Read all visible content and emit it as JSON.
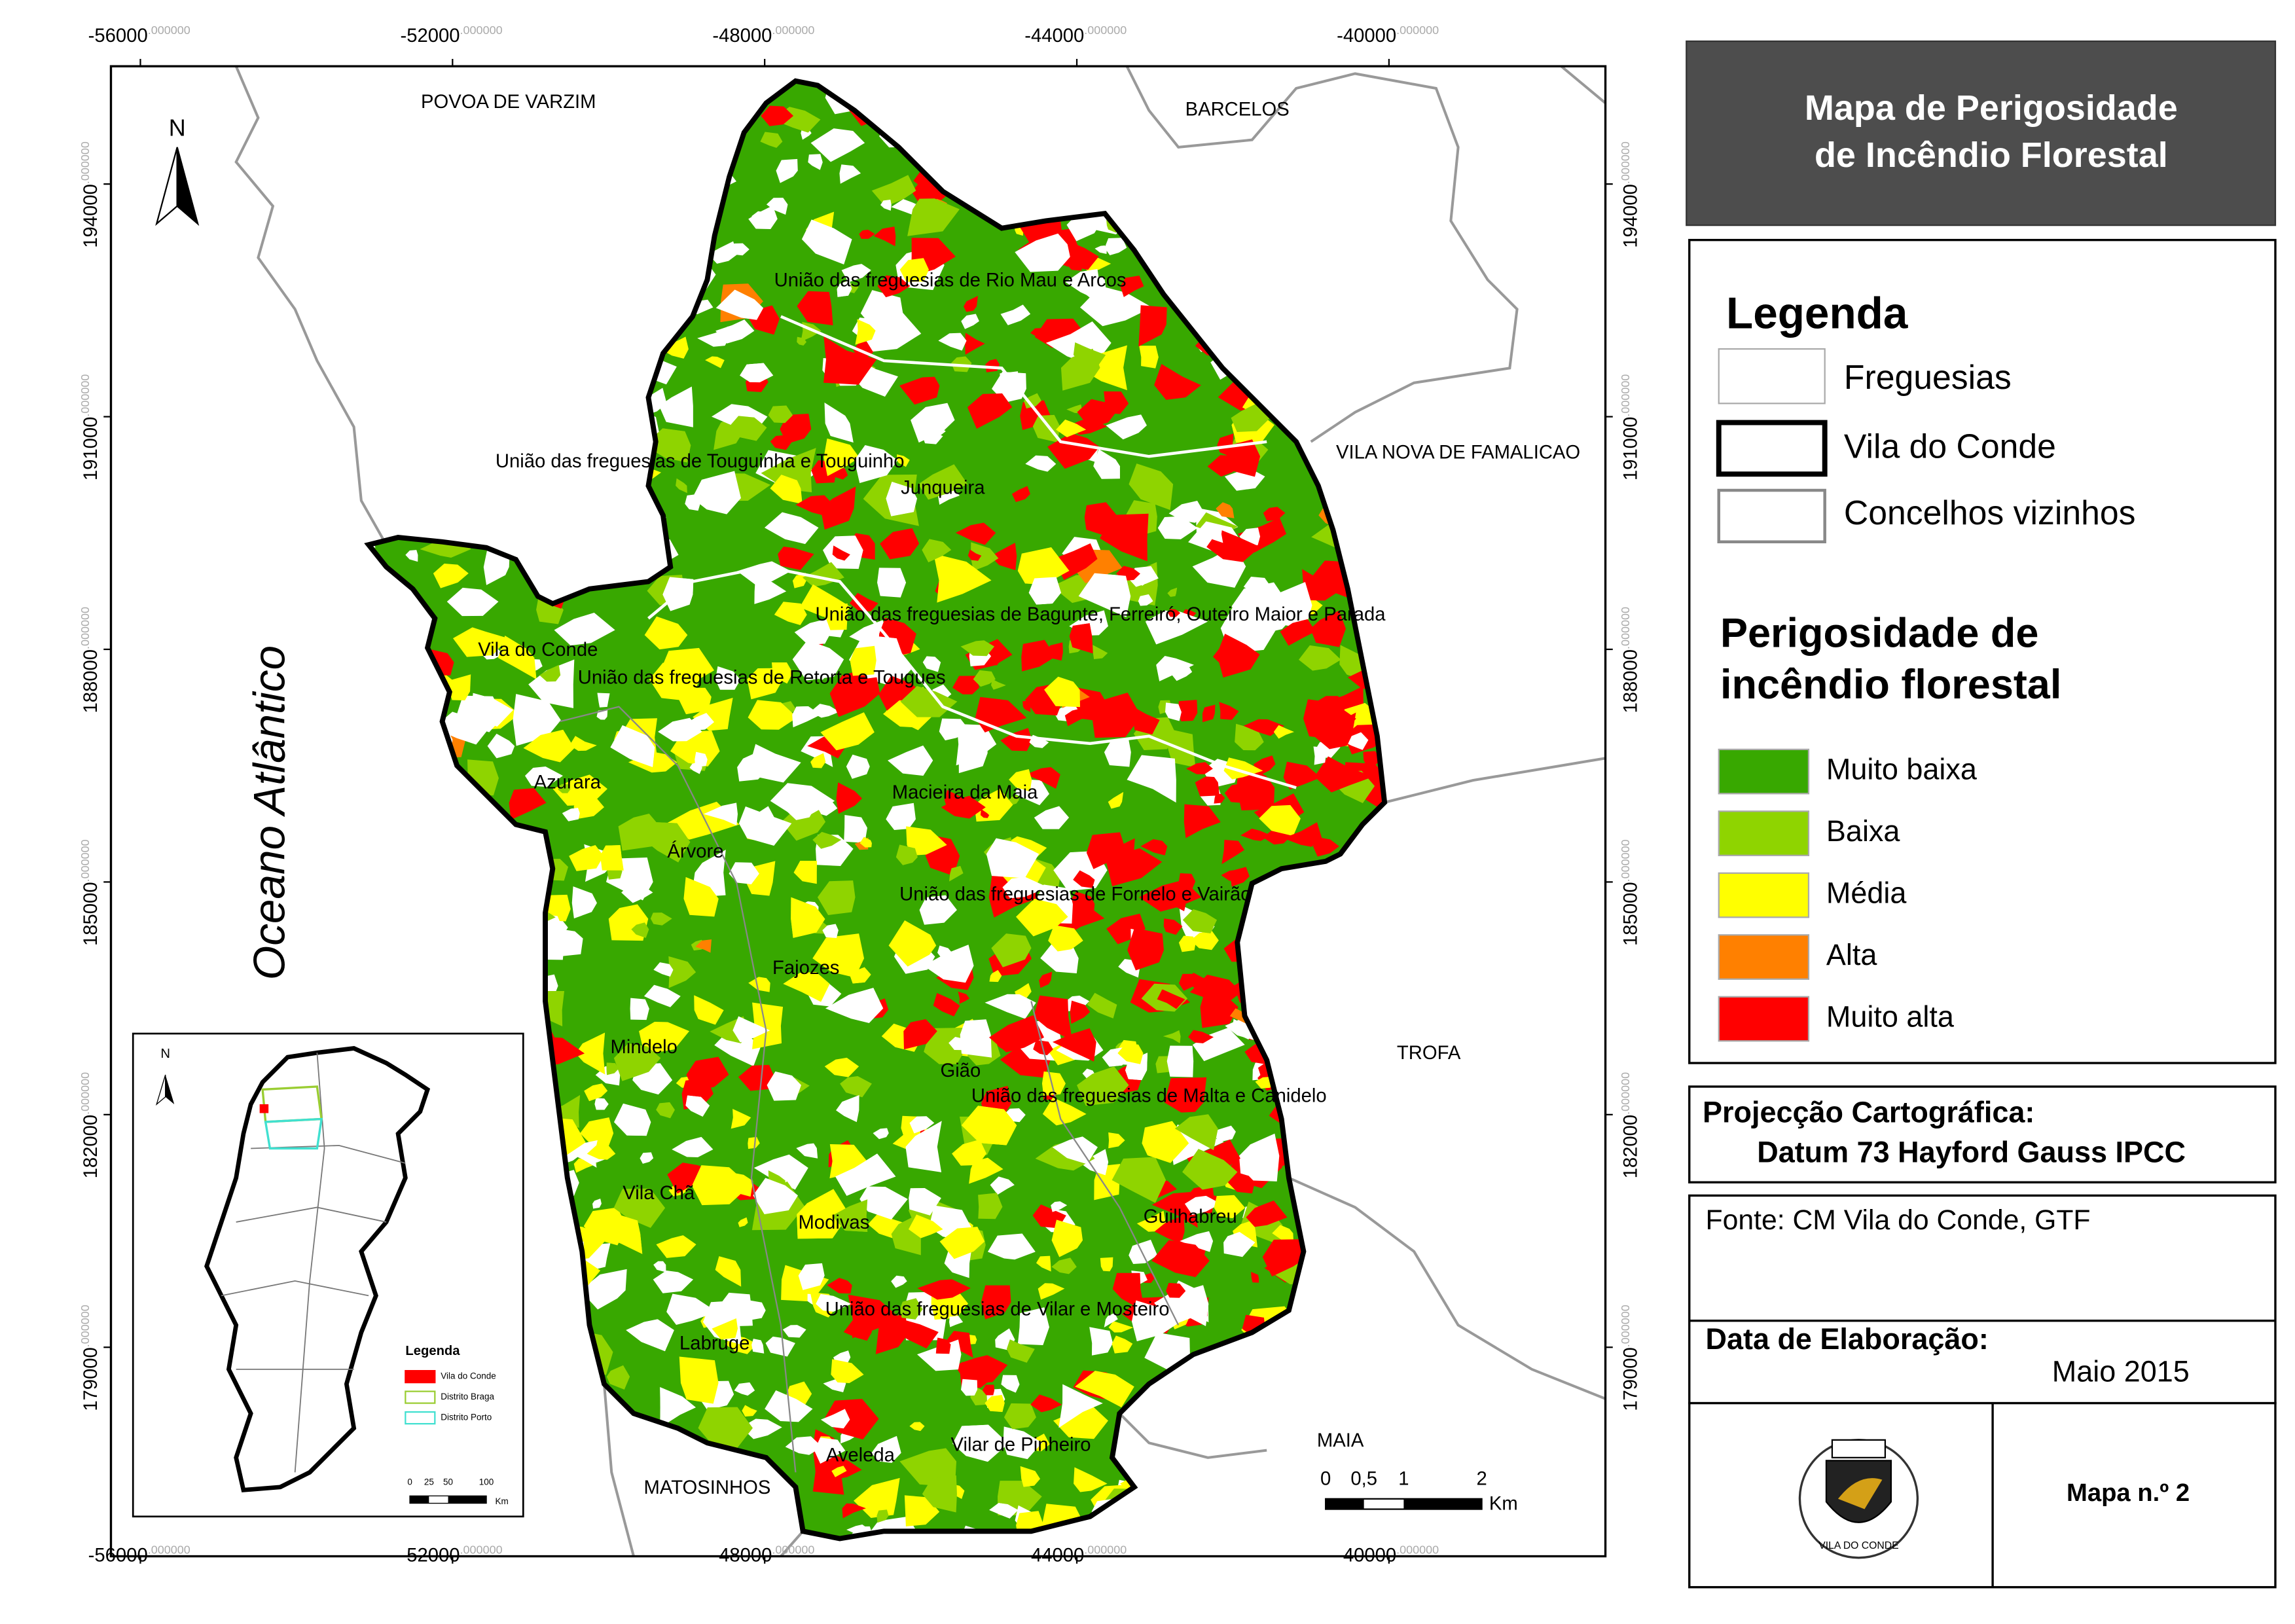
{
  "title": [
    "Mapa de Perigosidade",
    "de Incêndio Florestal"
  ],
  "legend": {
    "title": "Legenda",
    "boundaries": [
      "Freguesias",
      "Vila do Conde",
      "Concelhos vizinhos"
    ],
    "hazard_title": [
      "Perigosidade de",
      "incêndio florestal"
    ],
    "hazard_classes": [
      {
        "label": "Muito baixa",
        "color": "#38a800"
      },
      {
        "label": "Baixa",
        "color": "#8fd400"
      },
      {
        "label": "Média",
        "color": "#ffff00"
      },
      {
        "label": "Alta",
        "color": "#ff8000"
      },
      {
        "label": "Muito alta",
        "color": "#ff0000"
      }
    ]
  },
  "projection": {
    "title": "Projecção Cartográfica:",
    "datum": "Datum 73 Hayford Gauss IPCC"
  },
  "source": "Fonte: CM Vila do Conde, GTF",
  "date": {
    "title": "Data de Elaboração:",
    "value": "Maio 2015"
  },
  "map_number": "Mapa n.º 2",
  "logo_text": "VILA DO CONDE",
  "map": {
    "x_ticks": [
      -56000,
      -52000,
      -48000,
      -44000,
      -40000
    ],
    "y_ticks": [
      194000,
      191000,
      188000,
      185000,
      182000,
      179000
    ],
    "tick_decimals": ".000000",
    "north": "N",
    "ocean": "Oceano Atlântico",
    "neighbours": [
      "POVOA DE VARZIM",
      "BARCELOS",
      "VILA NOVA DE FAMALICAO",
      "TROFA",
      "MAIA",
      "MATOSINHOS"
    ],
    "parishes": [
      "União das freguesias de Rio Mau e Arcos",
      "União das freguesias de Touguinha e Touguinho",
      "Junqueira",
      "União das freguesias de Bagunte, Ferreiró, Outeiro Maior e Parada",
      "Vila do Conde",
      "União das freguesias de Retorta e Tougues",
      "Azurara",
      "Macieira da Maia",
      "Árvore",
      "União das freguesias de Fornelo e Vairão",
      "Fajozes",
      "Mindelo",
      "Gião",
      "União das freguesias de Malta e Canidelo",
      "Vila Chã",
      "Modivas",
      "Guilhabreu",
      "União das freguesias de Vilar e Mosteiro",
      "Labruge",
      "Aveleda",
      "Vilar de Pinheiro"
    ],
    "scale": {
      "ticks": [
        "0",
        "0,5",
        "1",
        "2"
      ],
      "unit": "Km"
    }
  },
  "inset": {
    "north": "N",
    "legend_title": "Legenda",
    "items": [
      {
        "label": "Vila do Conde",
        "color": "#ff0000"
      },
      {
        "label": "Distrito Braga",
        "color": "#9acd32"
      },
      {
        "label": "Distrito Porto",
        "color": "#40e0d0"
      }
    ],
    "scale_ticks": [
      "0",
      "25",
      "50",
      "100"
    ],
    "scale_unit": "Km"
  }
}
